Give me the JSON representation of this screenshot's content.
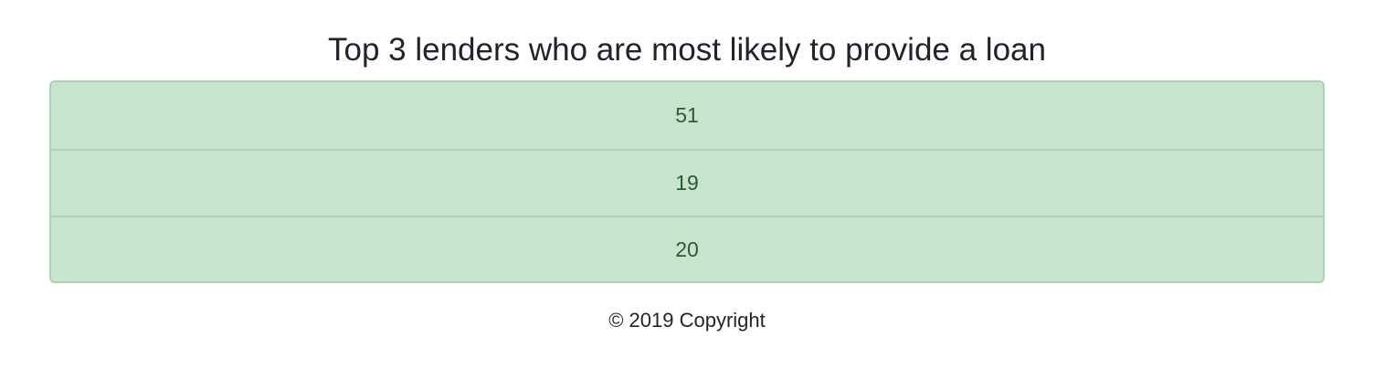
{
  "page": {
    "title": "Top 3 lenders who are most likely to provide a loan"
  },
  "lenders": [
    {
      "value": "51"
    },
    {
      "value": "19"
    },
    {
      "value": "20"
    }
  ],
  "footer": {
    "text": "© 2019 Copyright"
  },
  "colors": {
    "list_background": "#c8e4cd",
    "list_border": "#a9d3b4",
    "list_text": "#2a5b33",
    "text": "#212529"
  }
}
